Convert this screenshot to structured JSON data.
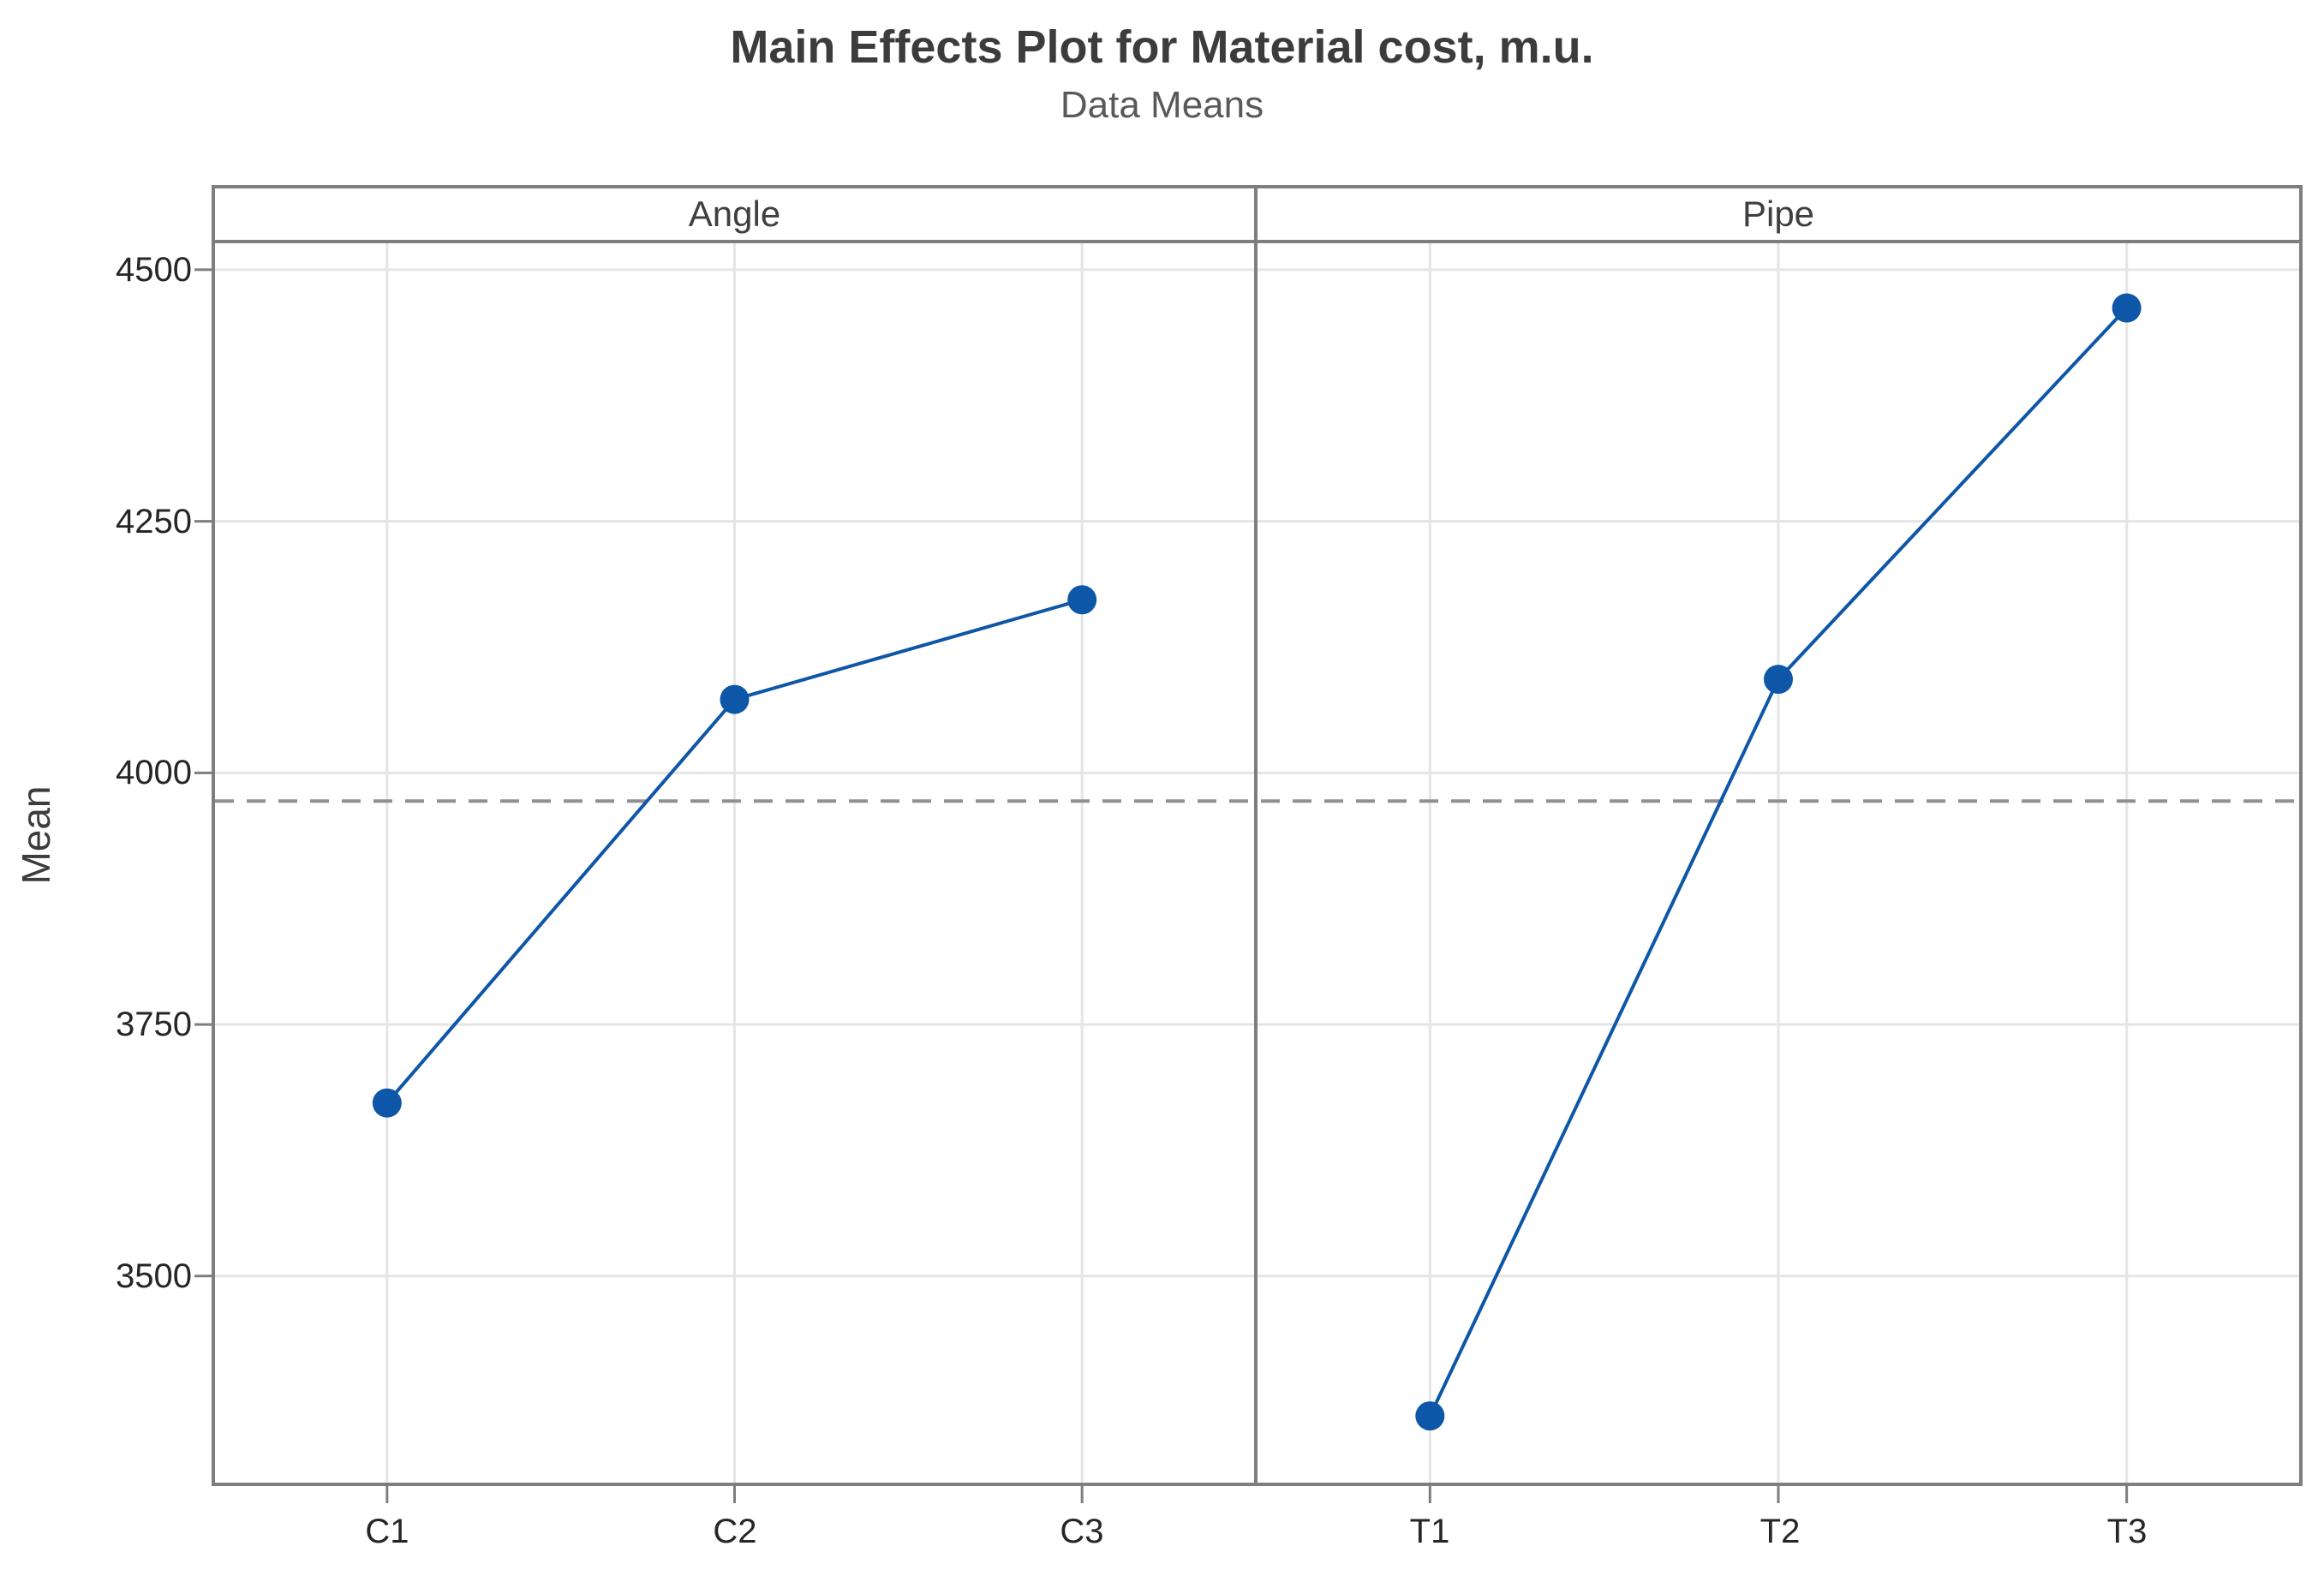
{
  "chart": {
    "title": "Main Effects Plot for Material cost, m.u.",
    "subtitle": "Data Means",
    "ylabel": "Mean"
  },
  "chart_data": {
    "type": "line",
    "title": "Main Effects Plot for Material cost, m.u.",
    "subtitle": "Data Means",
    "ylabel": "Mean",
    "panels": [
      {
        "header": "Angle",
        "categories": [
          "C1",
          "C2",
          "C3"
        ],
        "values": [
          3672,
          4073,
          4172
        ]
      },
      {
        "header": "Pipe",
        "categories": [
          "T1",
          "T2",
          "T3"
        ],
        "values": [
          3361,
          4093,
          4462
        ]
      }
    ],
    "yticks": [
      3500,
      3750,
      4000,
      4250,
      4500
    ],
    "ylim": [
      3293,
      4528
    ],
    "reference_line": 3972,
    "grid": true,
    "legend": "none",
    "marker": "filled-circle"
  },
  "colors": {
    "series": "#0E56A7",
    "grid": "#E5E5E5",
    "frame": "#7E7E7E",
    "reference": "#909090",
    "title": "#3C3C3C",
    "subtitle": "#595959",
    "tick_label": "#262626",
    "header_label": "#3F3F3F",
    "background": "#FFFFFF"
  }
}
